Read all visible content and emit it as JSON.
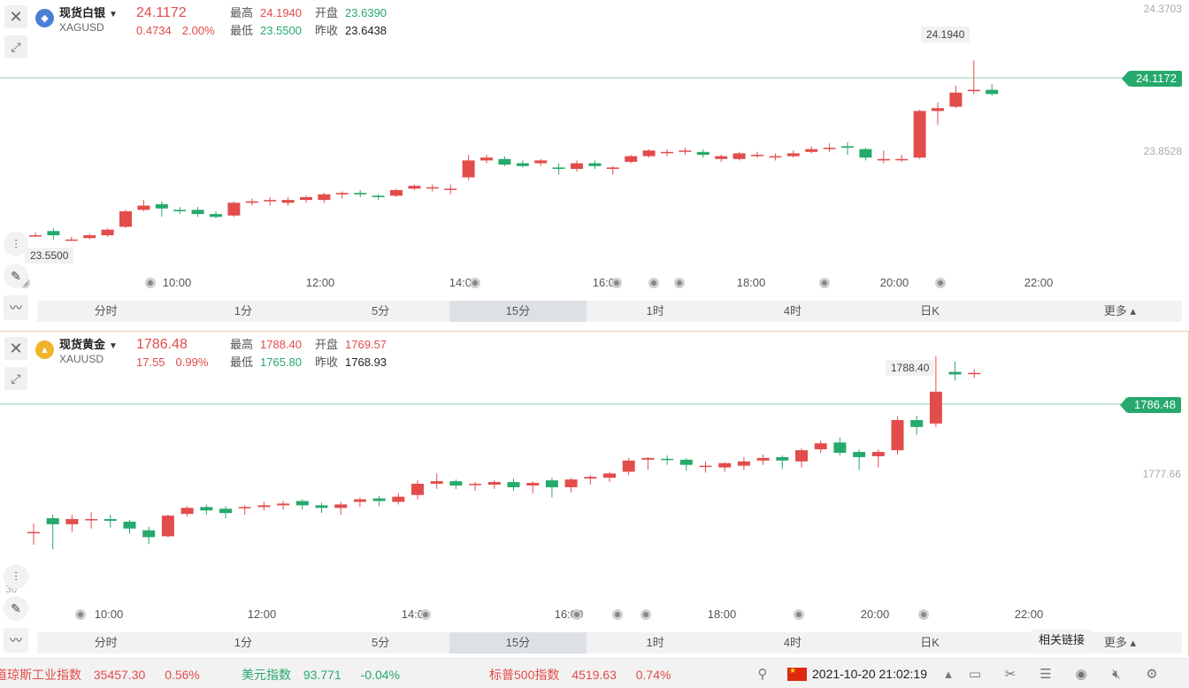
{
  "panels": [
    {
      "name": "现货白银",
      "code": "XAGUSD",
      "price": "24.1172",
      "change": "0.4734",
      "change_pct": "2.00%",
      "high_label": "最高",
      "high": "24.1940",
      "open_label": "开盘",
      "open": "23.6390",
      "low_label": "最低",
      "low": "23.5500",
      "prev_label": "昨收",
      "prev": "23.6438",
      "y_labels": [
        "24.3703",
        "23.8528"
      ],
      "price_tag": "24.1172",
      "max_marker": "24.1940",
      "min_marker": "23.5500",
      "time_labels": [
        "10:00",
        "12:00",
        "14:00",
        "16:00",
        "18:00",
        "20:00",
        "22:00"
      ],
      "icon_color": "#4a7fd6"
    },
    {
      "name": "现货黄金",
      "code": "XAUUSD",
      "price": "1786.48",
      "change": "17.55",
      "change_pct": "0.99%",
      "high_label": "最高",
      "high": "1788.40",
      "open_label": "开盘",
      "open": "1769.57",
      "low_label": "最低",
      "low": "1765.80",
      "prev_label": "昨收",
      "prev": "1768.93",
      "y_labels": [
        "1777.66"
      ],
      "y_partial": "30",
      "price_tag": "1786.48",
      "max_marker": "1788.40",
      "time_labels": [
        "10:00",
        "12:00",
        "14:00",
        "16:00",
        "18:00",
        "20:00",
        "22:00"
      ],
      "icon_color": "#f0b429"
    }
  ],
  "timeframes": [
    "分时",
    "1分",
    "5分",
    "15分",
    "1时",
    "4时",
    "日K",
    "更多"
  ],
  "active_timeframe": "15分",
  "related_links": "相关链接",
  "ticker": [
    {
      "name": "道琼斯工业指数",
      "value": "35457.30",
      "pct": "0.56%"
    },
    {
      "name": "美元指数",
      "value": "93.771",
      "pct": "-0.04%"
    },
    {
      "name": "标普500指数",
      "value": "4519.63",
      "pct": "0.74%"
    }
  ],
  "datetime": "2021-10-20 21:02:19",
  "colors": {
    "up": "#e24c4b",
    "down": "#26a96c",
    "accent": "#f4c7a8"
  },
  "chart_data": [
    {
      "type": "candlestick",
      "title": "现货白银 XAGUSD",
      "ylim": [
        23.5,
        24.3703
      ],
      "candles": [
        [
          23.575,
          23.585,
          23.57,
          23.575
        ],
        [
          23.59,
          23.6,
          23.56,
          23.575
        ],
        [
          23.56,
          23.57,
          23.555,
          23.56
        ],
        [
          23.565,
          23.58,
          23.56,
          23.575
        ],
        [
          23.575,
          23.6,
          23.57,
          23.595
        ],
        [
          23.605,
          23.665,
          23.6,
          23.66
        ],
        [
          23.665,
          23.7,
          23.66,
          23.68
        ],
        [
          23.685,
          23.695,
          23.64,
          23.67
        ],
        [
          23.665,
          23.675,
          23.65,
          23.66
        ],
        [
          23.665,
          23.675,
          23.64,
          23.65
        ],
        [
          23.65,
          23.66,
          23.635,
          23.64
        ],
        [
          23.645,
          23.695,
          23.64,
          23.69
        ],
        [
          23.69,
          23.705,
          23.68,
          23.695
        ],
        [
          23.695,
          23.71,
          23.68,
          23.7
        ],
        [
          23.69,
          23.71,
          23.68,
          23.7
        ],
        [
          23.7,
          23.715,
          23.69,
          23.71
        ],
        [
          23.7,
          23.725,
          23.69,
          23.72
        ],
        [
          23.72,
          23.73,
          23.705,
          23.725
        ],
        [
          23.725,
          23.735,
          23.71,
          23.72
        ],
        [
          23.715,
          23.72,
          23.7,
          23.71
        ],
        [
          23.715,
          23.74,
          23.71,
          23.735
        ],
        [
          23.74,
          23.755,
          23.735,
          23.75
        ],
        [
          23.745,
          23.755,
          23.73,
          23.745
        ],
        [
          23.74,
          23.755,
          23.72,
          23.74
        ],
        [
          23.78,
          23.86,
          23.77,
          23.84
        ],
        [
          23.84,
          23.86,
          23.83,
          23.85
        ],
        [
          23.845,
          23.855,
          23.82,
          23.825
        ],
        [
          23.83,
          23.84,
          23.815,
          23.82
        ],
        [
          23.83,
          23.845,
          23.82,
          23.84
        ],
        [
          23.815,
          23.83,
          23.79,
          23.81
        ],
        [
          23.81,
          23.84,
          23.8,
          23.83
        ],
        [
          23.83,
          23.84,
          23.81,
          23.82
        ],
        [
          23.81,
          23.82,
          23.79,
          23.815
        ],
        [
          23.835,
          23.86,
          23.83,
          23.855
        ],
        [
          23.855,
          23.88,
          23.85,
          23.875
        ],
        [
          23.87,
          23.88,
          23.855,
          23.87
        ],
        [
          23.875,
          23.885,
          23.86,
          23.875
        ],
        [
          23.87,
          23.88,
          23.85,
          23.86
        ],
        [
          23.845,
          23.86,
          23.835,
          23.855
        ],
        [
          23.845,
          23.87,
          23.84,
          23.865
        ],
        [
          23.86,
          23.87,
          23.85,
          23.86
        ],
        [
          23.855,
          23.865,
          23.84,
          23.855
        ],
        [
          23.855,
          23.875,
          23.85,
          23.865
        ],
        [
          23.87,
          23.89,
          23.865,
          23.88
        ],
        [
          23.885,
          23.9,
          23.87,
          23.885
        ],
        [
          23.89,
          23.905,
          23.86,
          23.885
        ],
        [
          23.88,
          23.885,
          23.84,
          23.85
        ],
        [
          23.84,
          23.875,
          23.83,
          23.845
        ],
        [
          23.845,
          23.86,
          23.835,
          23.845
        ],
        [
          23.85,
          24.02,
          23.845,
          24.015
        ],
        [
          24.015,
          24.045,
          23.965,
          24.025
        ],
        [
          24.03,
          24.105,
          24.025,
          24.08
        ],
        [
          24.085,
          24.194,
          24.075,
          24.09
        ],
        [
          24.09,
          24.11,
          24.07,
          24.075
        ]
      ]
    },
    {
      "type": "candlestick",
      "title": "现货黄金 XAUUSD",
      "ylim": [
        1765.8,
        1788.4
      ],
      "candles": [
        [
          1768.0,
          1769.0,
          1766.5,
          1768.0
        ],
        [
          1769.6,
          1770.0,
          1766.0,
          1768.9
        ],
        [
          1768.9,
          1770.0,
          1768.0,
          1769.5
        ],
        [
          1769.5,
          1770.3,
          1768.4,
          1769.5
        ],
        [
          1769.5,
          1770.0,
          1768.5,
          1769.3
        ],
        [
          1769.2,
          1769.4,
          1767.8,
          1768.4
        ],
        [
          1768.2,
          1768.6,
          1766.6,
          1767.4
        ],
        [
          1767.5,
          1770.0,
          1767.4,
          1769.9
        ],
        [
          1770.1,
          1771.0,
          1769.8,
          1770.8
        ],
        [
          1770.9,
          1771.2,
          1770.0,
          1770.5
        ],
        [
          1770.7,
          1771.0,
          1769.6,
          1770.2
        ],
        [
          1770.9,
          1771.1,
          1770.0,
          1770.9
        ],
        [
          1770.9,
          1771.5,
          1770.5,
          1771.1
        ],
        [
          1771.1,
          1771.6,
          1770.6,
          1771.3
        ],
        [
          1771.6,
          1771.8,
          1770.6,
          1771.1
        ],
        [
          1771.1,
          1771.4,
          1770.2,
          1770.8
        ],
        [
          1770.8,
          1771.5,
          1770.0,
          1771.2
        ],
        [
          1771.5,
          1772.0,
          1770.9,
          1771.8
        ],
        [
          1771.9,
          1772.2,
          1771.0,
          1771.6
        ],
        [
          1771.5,
          1772.5,
          1771.2,
          1772.1
        ],
        [
          1772.3,
          1774.0,
          1771.8,
          1773.6
        ],
        [
          1773.6,
          1774.8,
          1773.0,
          1773.9
        ],
        [
          1773.9,
          1774.1,
          1773.0,
          1773.4
        ],
        [
          1773.5,
          1773.8,
          1772.8,
          1773.6
        ],
        [
          1773.5,
          1774.0,
          1773.0,
          1773.8
        ],
        [
          1773.8,
          1774.2,
          1772.8,
          1773.2
        ],
        [
          1773.4,
          1773.9,
          1772.5,
          1773.7
        ],
        [
          1774.0,
          1774.3,
          1772.0,
          1773.2
        ],
        [
          1773.2,
          1774.3,
          1772.6,
          1774.1
        ],
        [
          1774.2,
          1774.6,
          1773.5,
          1774.4
        ],
        [
          1774.3,
          1775.0,
          1773.8,
          1774.8
        ],
        [
          1775.0,
          1776.6,
          1774.6,
          1776.3
        ],
        [
          1776.4,
          1776.7,
          1775.2,
          1776.6
        ],
        [
          1776.5,
          1776.9,
          1775.8,
          1776.4
        ],
        [
          1776.4,
          1776.6,
          1775.1,
          1775.8
        ],
        [
          1775.6,
          1776.2,
          1774.9,
          1775.7
        ],
        [
          1775.5,
          1776.1,
          1775.0,
          1776.0
        ],
        [
          1775.7,
          1776.7,
          1775.2,
          1776.2
        ],
        [
          1776.3,
          1777.0,
          1775.8,
          1776.6
        ],
        [
          1776.7,
          1776.9,
          1775.3,
          1776.3
        ],
        [
          1776.2,
          1777.7,
          1775.5,
          1777.5
        ],
        [
          1777.6,
          1778.6,
          1777.2,
          1778.3
        ],
        [
          1778.4,
          1779.0,
          1776.9,
          1777.2
        ],
        [
          1777.3,
          1777.6,
          1775.2,
          1776.7
        ],
        [
          1776.8,
          1777.6,
          1775.5,
          1777.3
        ],
        [
          1777.5,
          1781.4,
          1777.0,
          1781.0
        ],
        [
          1781.0,
          1781.5,
          1779.3,
          1780.2
        ],
        [
          1780.6,
          1788.4,
          1780.2,
          1784.3
        ],
        [
          1786.6,
          1787.8,
          1785.6,
          1786.3
        ],
        [
          1786.4,
          1786.9,
          1785.9,
          1786.48
        ]
      ]
    }
  ]
}
